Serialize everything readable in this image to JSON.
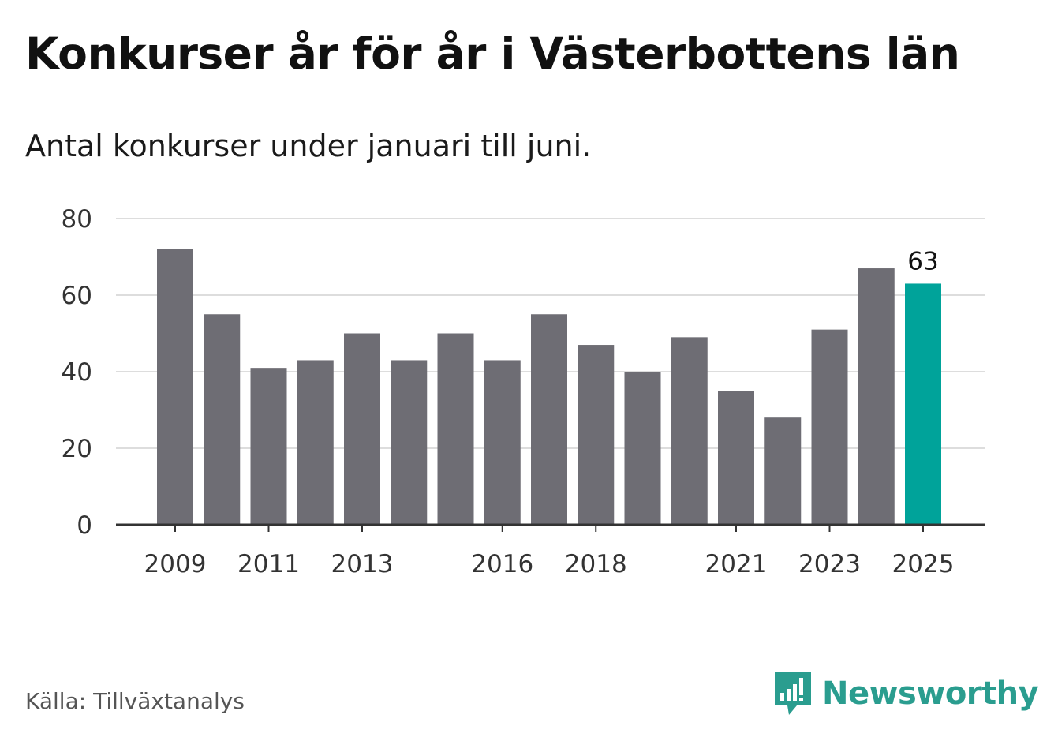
{
  "title": "Konkurser år för år i Västerbottens län",
  "subtitle": "Antal konkurser under januari till juni.",
  "source": "Källa: Tillväxtanalys",
  "brand": {
    "name": "Newsworthy",
    "icon": "newsworthy-logo-icon"
  },
  "colors": {
    "bar": "#6e6d74",
    "highlight": "#00a39a",
    "grid": "#dddddd",
    "axis": "#333333",
    "brand": "#2a9d8f"
  },
  "chart_data": {
    "type": "bar",
    "title": "Konkurser år för år i Västerbottens län",
    "subtitle": "Antal konkurser under januari till juni.",
    "categories": [
      "2009",
      "2010",
      "2011",
      "2012",
      "2013",
      "2014",
      "2015",
      "2016",
      "2017",
      "2018",
      "2019",
      "2020",
      "2021",
      "2022",
      "2023",
      "2024",
      "2025"
    ],
    "values": [
      72,
      55,
      41,
      43,
      50,
      43,
      50,
      43,
      55,
      47,
      40,
      49,
      35,
      28,
      51,
      67,
      63
    ],
    "highlight": {
      "category": "2025",
      "value": 63,
      "label": "63"
    },
    "x_tick_labels": [
      "2009",
      "2011",
      "2013",
      "2016",
      "2018",
      "2021",
      "2023",
      "2025"
    ],
    "y_ticks": [
      0,
      20,
      40,
      60,
      80
    ],
    "ylim": [
      0,
      80
    ],
    "xlabel": "",
    "ylabel": "",
    "grid": true,
    "legend": "none"
  }
}
